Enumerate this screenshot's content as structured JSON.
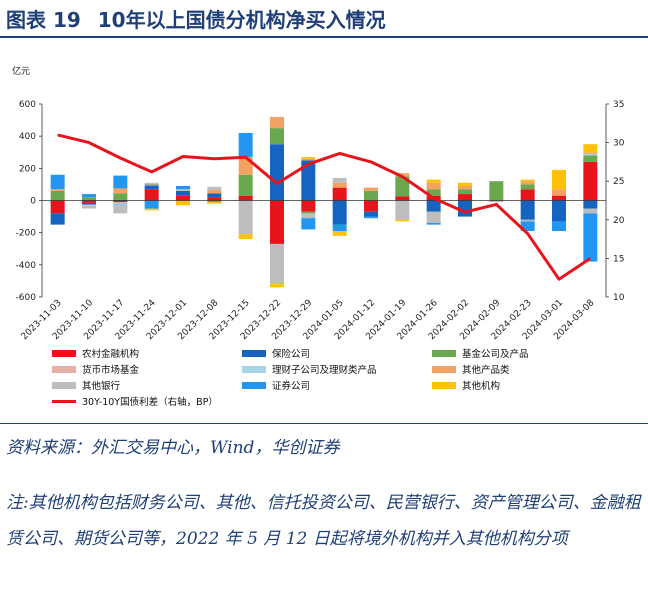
{
  "header": {
    "fig_label": "图表 19",
    "title": "10年以上国债分机构净买入情况"
  },
  "footer": {
    "source": "资料来源：外汇交易中心，Wind，华创证券",
    "note": "注:其他机构包括财务公司、其他、信托投资公司、民营银行、资产管理公司、金融租赁公司、期货公司等，2022 年 5 月 12 日起将境外机构并入其他机构分项"
  },
  "chart_data": {
    "type": "bar",
    "stacked": true,
    "categories": [
      "2023-11-03",
      "2023-11-10",
      "2023-11-17",
      "2023-11-24",
      "2023-12-01",
      "2023-12-08",
      "2023-12-15",
      "2023-12-22",
      "2023-12-29",
      "2024-01-05",
      "2024-01-12",
      "2024-01-19",
      "2024-01-26",
      "2024-02-02",
      "2024-02-09",
      "2024-02-23",
      "2024-03-01",
      "2024-03-08"
    ],
    "y_left": {
      "unit": "亿元",
      "range": [
        -600,
        600
      ],
      "ticks": [
        "600",
        "400",
        "200",
        "0",
        "-200",
        "-400",
        "-600"
      ]
    },
    "y_right": {
      "range": [
        10,
        35
      ],
      "ticks": [
        "35",
        "30",
        "25",
        "20",
        "15",
        "10"
      ]
    },
    "grid": false,
    "legend_position": "bottom",
    "series": [
      {
        "name": "农村金融机构",
        "color": "#e8141b",
        "values": [
          -80,
          -15,
          5,
          70,
          30,
          20,
          30,
          -270,
          -70,
          80,
          -70,
          25,
          30,
          40,
          0,
          70,
          30,
          240
        ]
      },
      {
        "name": "保险公司",
        "color": "#1565c0",
        "values": [
          -70,
          -10,
          -10,
          20,
          30,
          25,
          0,
          350,
          250,
          -150,
          -30,
          0,
          -70,
          -100,
          0,
          -120,
          -130,
          -50
        ]
      },
      {
        "name": "基金公司及产品",
        "color": "#6aa84f",
        "values": [
          60,
          20,
          40,
          10,
          0,
          -10,
          130,
          100,
          -10,
          0,
          60,
          125,
          40,
          30,
          120,
          30,
          0,
          40
        ]
      },
      {
        "name": "货币市场基金",
        "color": "#e6b0aa",
        "values": [
          0,
          0,
          0,
          0,
          0,
          0,
          0,
          0,
          0,
          0,
          0,
          0,
          0,
          0,
          0,
          0,
          0,
          0
        ]
      },
      {
        "name": "理财子公司及理财类产品",
        "color": "#a9d4e6",
        "values": [
          0,
          -10,
          0,
          0,
          0,
          0,
          0,
          0,
          0,
          0,
          0,
          0,
          0,
          0,
          0,
          0,
          0,
          10
        ]
      },
      {
        "name": "其他产品类",
        "color": "#f4a261",
        "values": [
          10,
          0,
          30,
          0,
          0,
          20,
          110,
          70,
          10,
          30,
          20,
          20,
          40,
          20,
          0,
          20,
          40,
          10
        ]
      },
      {
        "name": "其他银行",
        "color": "#bdbdbd",
        "values": [
          0,
          -15,
          -70,
          10,
          10,
          20,
          -210,
          -250,
          -30,
          30,
          0,
          -120,
          -70,
          0,
          -10,
          -10,
          0,
          -30
        ]
      },
      {
        "name": "证券公司",
        "color": "#2196f3",
        "values": [
          90,
          20,
          80,
          -50,
          20,
          0,
          150,
          0,
          -70,
          -40,
          -10,
          0,
          -10,
          0,
          0,
          -60,
          -60,
          -300
        ]
      },
      {
        "name": "其他机构",
        "color": "#ffc107",
        "values": [
          0,
          0,
          0,
          -10,
          -30,
          -10,
          -30,
          -20,
          10,
          -30,
          0,
          -10,
          20,
          20,
          0,
          10,
          120,
          50
        ]
      }
    ],
    "line": {
      "name": "30Y-10Y国债利差（右轴，BP）",
      "color": "#e8141b",
      "axis": "right",
      "values": [
        31.0,
        30.0,
        28.0,
        26.2,
        28.2,
        27.9,
        28.1,
        24.7,
        27.2,
        28.6,
        27.5,
        25.6,
        22.8,
        21.0,
        22.0,
        18.2,
        12.3,
        15.0
      ]
    }
  }
}
